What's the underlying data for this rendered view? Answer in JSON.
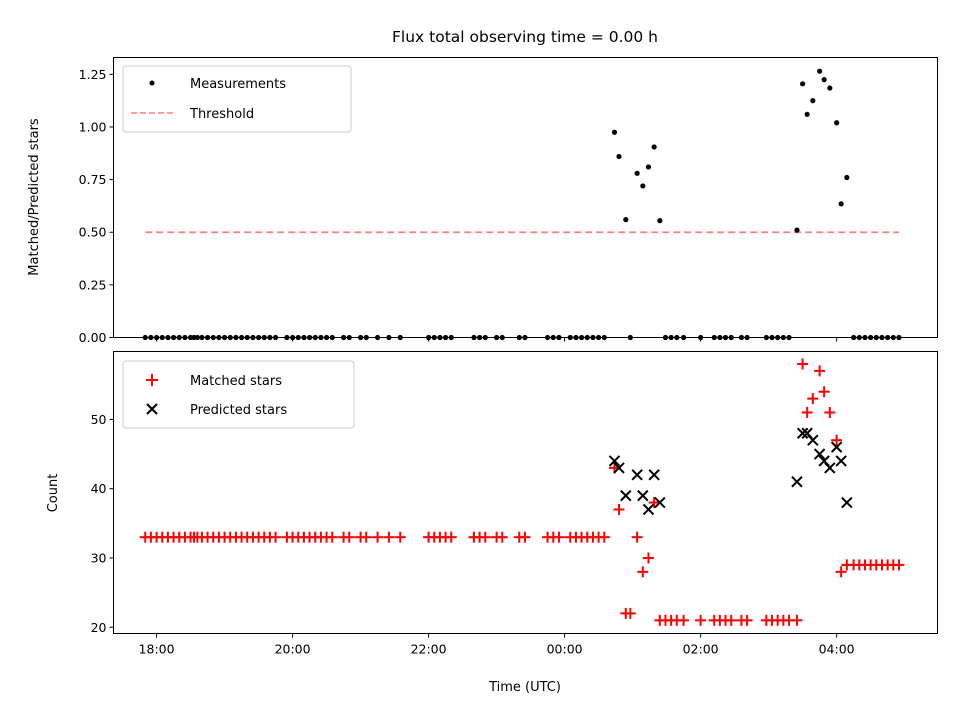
{
  "chart_data": [
    {
      "type": "scatter",
      "panel": "top",
      "title": "Flux total observing time = 0.00 h",
      "xlabel": "",
      "ylabel": "Matched/Predicted stars",
      "ylim": [
        0.0,
        1.33
      ],
      "xlim": [
        "17:22",
        "05:29"
      ],
      "yticks": [
        "0.00",
        "0.25",
        "0.50",
        "0.75",
        "1.00",
        "1.25"
      ],
      "ytick_values": [
        0.0,
        0.25,
        0.5,
        0.75,
        1.0,
        1.25
      ],
      "xticks": [
        "18:00",
        "20:00",
        "22:00",
        "00:00",
        "02:00",
        "04:00"
      ],
      "legend": {
        "placement": "upper-left",
        "entries": [
          "Measurements",
          "Threshold"
        ]
      },
      "threshold": {
        "name": "Threshold",
        "value": 0.5,
        "x_start": "17:50",
        "x_end": "04:55",
        "color": "#ff7f7f"
      },
      "series": [
        {
          "name": "Measurements",
          "color": "#000000",
          "points": [
            [
              "17:50",
              0
            ],
            [
              "17:55",
              0
            ],
            [
              "18:00",
              0
            ],
            [
              "18:05",
              0
            ],
            [
              "18:10",
              0
            ],
            [
              "18:15",
              0
            ],
            [
              "18:20",
              0
            ],
            [
              "18:25",
              0
            ],
            [
              "18:30",
              0
            ],
            [
              "18:33",
              0
            ],
            [
              "18:36",
              0
            ],
            [
              "18:40",
              0
            ],
            [
              "18:45",
              0
            ],
            [
              "18:50",
              0
            ],
            [
              "18:55",
              0
            ],
            [
              "19:00",
              0
            ],
            [
              "19:05",
              0
            ],
            [
              "19:10",
              0
            ],
            [
              "19:15",
              0
            ],
            [
              "19:20",
              0
            ],
            [
              "19:25",
              0
            ],
            [
              "19:30",
              0
            ],
            [
              "19:35",
              0
            ],
            [
              "19:40",
              0
            ],
            [
              "19:45",
              0
            ],
            [
              "19:55",
              0
            ],
            [
              "20:00",
              0
            ],
            [
              "20:05",
              0
            ],
            [
              "20:10",
              0
            ],
            [
              "20:15",
              0
            ],
            [
              "20:20",
              0
            ],
            [
              "20:25",
              0
            ],
            [
              "20:30",
              0
            ],
            [
              "20:35",
              0
            ],
            [
              "20:45",
              0
            ],
            [
              "20:50",
              0
            ],
            [
              "21:00",
              0
            ],
            [
              "21:05",
              0
            ],
            [
              "21:15",
              0
            ],
            [
              "21:25",
              0
            ],
            [
              "21:35",
              0
            ],
            [
              "22:00",
              0
            ],
            [
              "22:05",
              0
            ],
            [
              "22:10",
              0
            ],
            [
              "22:15",
              0
            ],
            [
              "22:20",
              0
            ],
            [
              "22:40",
              0
            ],
            [
              "22:45",
              0
            ],
            [
              "22:50",
              0
            ],
            [
              "23:00",
              0
            ],
            [
              "23:05",
              0
            ],
            [
              "23:20",
              0
            ],
            [
              "23:25",
              0
            ],
            [
              "23:45",
              0
            ],
            [
              "23:50",
              0
            ],
            [
              "23:55",
              0
            ],
            [
              "00:05",
              0
            ],
            [
              "00:10",
              0
            ],
            [
              "00:15",
              0
            ],
            [
              "00:20",
              0
            ],
            [
              "00:25",
              0
            ],
            [
              "00:30",
              0
            ],
            [
              "00:35",
              0
            ],
            [
              "00:44",
              0.975
            ],
            [
              "00:48",
              0.86
            ],
            [
              "00:54",
              0.56
            ],
            [
              "00:58",
              0
            ],
            [
              "01:04",
              0.78
            ],
            [
              "01:09",
              0.72
            ],
            [
              "01:14",
              0.81
            ],
            [
              "01:19",
              0.905
            ],
            [
              "01:24",
              0.555
            ],
            [
              "01:29",
              0
            ],
            [
              "01:34",
              0
            ],
            [
              "01:39",
              0
            ],
            [
              "01:45",
              0
            ],
            [
              "02:00",
              0
            ],
            [
              "02:12",
              0
            ],
            [
              "02:17",
              0
            ],
            [
              "02:22",
              0
            ],
            [
              "02:27",
              0
            ],
            [
              "02:36",
              0
            ],
            [
              "02:41",
              0
            ],
            [
              "02:58",
              0
            ],
            [
              "03:03",
              0
            ],
            [
              "03:08",
              0
            ],
            [
              "03:13",
              0
            ],
            [
              "03:18",
              0
            ],
            [
              "03:25",
              0.51
            ],
            [
              "03:30",
              1.205
            ],
            [
              "03:34",
              1.06
            ],
            [
              "03:39",
              1.125
            ],
            [
              "03:45",
              1.265
            ],
            [
              "03:49",
              1.225
            ],
            [
              "03:54",
              1.185
            ],
            [
              "04:00",
              1.02
            ],
            [
              "04:04",
              0.635
            ],
            [
              "04:09",
              0.76
            ],
            [
              "04:15",
              0
            ],
            [
              "04:20",
              0
            ],
            [
              "04:25",
              0
            ],
            [
              "04:30",
              0
            ],
            [
              "04:35",
              0
            ],
            [
              "04:40",
              0
            ],
            [
              "04:45",
              0
            ],
            [
              "04:50",
              0
            ],
            [
              "04:55",
              0
            ]
          ]
        }
      ]
    },
    {
      "type": "scatter",
      "panel": "bottom",
      "title": "",
      "xlabel": "Time (UTC)",
      "ylabel": "Count",
      "ylim": [
        19.1,
        59.8
      ],
      "xlim": [
        "17:22",
        "05:29"
      ],
      "yticks": [
        "20",
        "30",
        "40",
        "50"
      ],
      "ytick_values": [
        20,
        30,
        40,
        50
      ],
      "xticks": [
        "18:00",
        "20:00",
        "22:00",
        "00:00",
        "02:00",
        "04:00"
      ],
      "legend": {
        "placement": "upper-left",
        "entries": [
          "Matched stars",
          "Predicted stars"
        ]
      },
      "series": [
        {
          "name": "Matched stars",
          "marker": "plus",
          "color": "#ff0000",
          "points": [
            [
              "17:50",
              33
            ],
            [
              "17:55",
              33
            ],
            [
              "18:00",
              33
            ],
            [
              "18:05",
              33
            ],
            [
              "18:10",
              33
            ],
            [
              "18:15",
              33
            ],
            [
              "18:20",
              33
            ],
            [
              "18:25",
              33
            ],
            [
              "18:30",
              33
            ],
            [
              "18:33",
              33
            ],
            [
              "18:36",
              33
            ],
            [
              "18:40",
              33
            ],
            [
              "18:45",
              33
            ],
            [
              "18:50",
              33
            ],
            [
              "18:55",
              33
            ],
            [
              "19:00",
              33
            ],
            [
              "19:05",
              33
            ],
            [
              "19:10",
              33
            ],
            [
              "19:15",
              33
            ],
            [
              "19:20",
              33
            ],
            [
              "19:25",
              33
            ],
            [
              "19:30",
              33
            ],
            [
              "19:35",
              33
            ],
            [
              "19:40",
              33
            ],
            [
              "19:45",
              33
            ],
            [
              "19:55",
              33
            ],
            [
              "20:00",
              33
            ],
            [
              "20:05",
              33
            ],
            [
              "20:10",
              33
            ],
            [
              "20:15",
              33
            ],
            [
              "20:20",
              33
            ],
            [
              "20:25",
              33
            ],
            [
              "20:30",
              33
            ],
            [
              "20:35",
              33
            ],
            [
              "20:45",
              33
            ],
            [
              "20:50",
              33
            ],
            [
              "21:00",
              33
            ],
            [
              "21:05",
              33
            ],
            [
              "21:15",
              33
            ],
            [
              "21:25",
              33
            ],
            [
              "21:35",
              33
            ],
            [
              "22:00",
              33
            ],
            [
              "22:05",
              33
            ],
            [
              "22:10",
              33
            ],
            [
              "22:15",
              33
            ],
            [
              "22:20",
              33
            ],
            [
              "22:40",
              33
            ],
            [
              "22:45",
              33
            ],
            [
              "22:50",
              33
            ],
            [
              "23:00",
              33
            ],
            [
              "23:05",
              33
            ],
            [
              "23:20",
              33
            ],
            [
              "23:25",
              33
            ],
            [
              "23:45",
              33
            ],
            [
              "23:50",
              33
            ],
            [
              "23:55",
              33
            ],
            [
              "00:05",
              33
            ],
            [
              "00:10",
              33
            ],
            [
              "00:15",
              33
            ],
            [
              "00:20",
              33
            ],
            [
              "00:25",
              33
            ],
            [
              "00:30",
              33
            ],
            [
              "00:35",
              33
            ],
            [
              "00:44",
              43
            ],
            [
              "00:48",
              37
            ],
            [
              "00:54",
              22
            ],
            [
              "00:58",
              22
            ],
            [
              "01:04",
              33
            ],
            [
              "01:09",
              28
            ],
            [
              "01:14",
              30
            ],
            [
              "01:19",
              38
            ],
            [
              "01:24",
              21
            ],
            [
              "01:29",
              21
            ],
            [
              "01:34",
              21
            ],
            [
              "01:39",
              21
            ],
            [
              "01:45",
              21
            ],
            [
              "02:00",
              21
            ],
            [
              "02:12",
              21
            ],
            [
              "02:17",
              21
            ],
            [
              "02:22",
              21
            ],
            [
              "02:27",
              21
            ],
            [
              "02:36",
              21
            ],
            [
              "02:41",
              21
            ],
            [
              "02:58",
              21
            ],
            [
              "03:03",
              21
            ],
            [
              "03:08",
              21
            ],
            [
              "03:13",
              21
            ],
            [
              "03:18",
              21
            ],
            [
              "03:25",
              21
            ],
            [
              "03:30",
              58
            ],
            [
              "03:34",
              51
            ],
            [
              "03:39",
              53
            ],
            [
              "03:45",
              57
            ],
            [
              "03:49",
              54
            ],
            [
              "03:54",
              51
            ],
            [
              "04:00",
              47
            ],
            [
              "04:04",
              28
            ],
            [
              "04:09",
              29
            ],
            [
              "04:15",
              29
            ],
            [
              "04:20",
              29
            ],
            [
              "04:25",
              29
            ],
            [
              "04:30",
              29
            ],
            [
              "04:35",
              29
            ],
            [
              "04:40",
              29
            ],
            [
              "04:45",
              29
            ],
            [
              "04:50",
              29
            ],
            [
              "04:55",
              29
            ]
          ]
        },
        {
          "name": "Predicted stars",
          "marker": "x",
          "color": "#000000",
          "points": [
            [
              "00:44",
              44
            ],
            [
              "00:48",
              43
            ],
            [
              "00:54",
              39
            ],
            [
              "01:04",
              42
            ],
            [
              "01:09",
              39
            ],
            [
              "01:14",
              37
            ],
            [
              "01:19",
              42
            ],
            [
              "01:24",
              38
            ],
            [
              "03:25",
              41
            ],
            [
              "03:30",
              48
            ],
            [
              "03:34",
              48
            ],
            [
              "03:39",
              47
            ],
            [
              "03:45",
              45
            ],
            [
              "03:49",
              44
            ],
            [
              "03:54",
              43
            ],
            [
              "04:00",
              46
            ],
            [
              "04:04",
              44
            ],
            [
              "04:09",
              38
            ]
          ]
        }
      ]
    }
  ]
}
